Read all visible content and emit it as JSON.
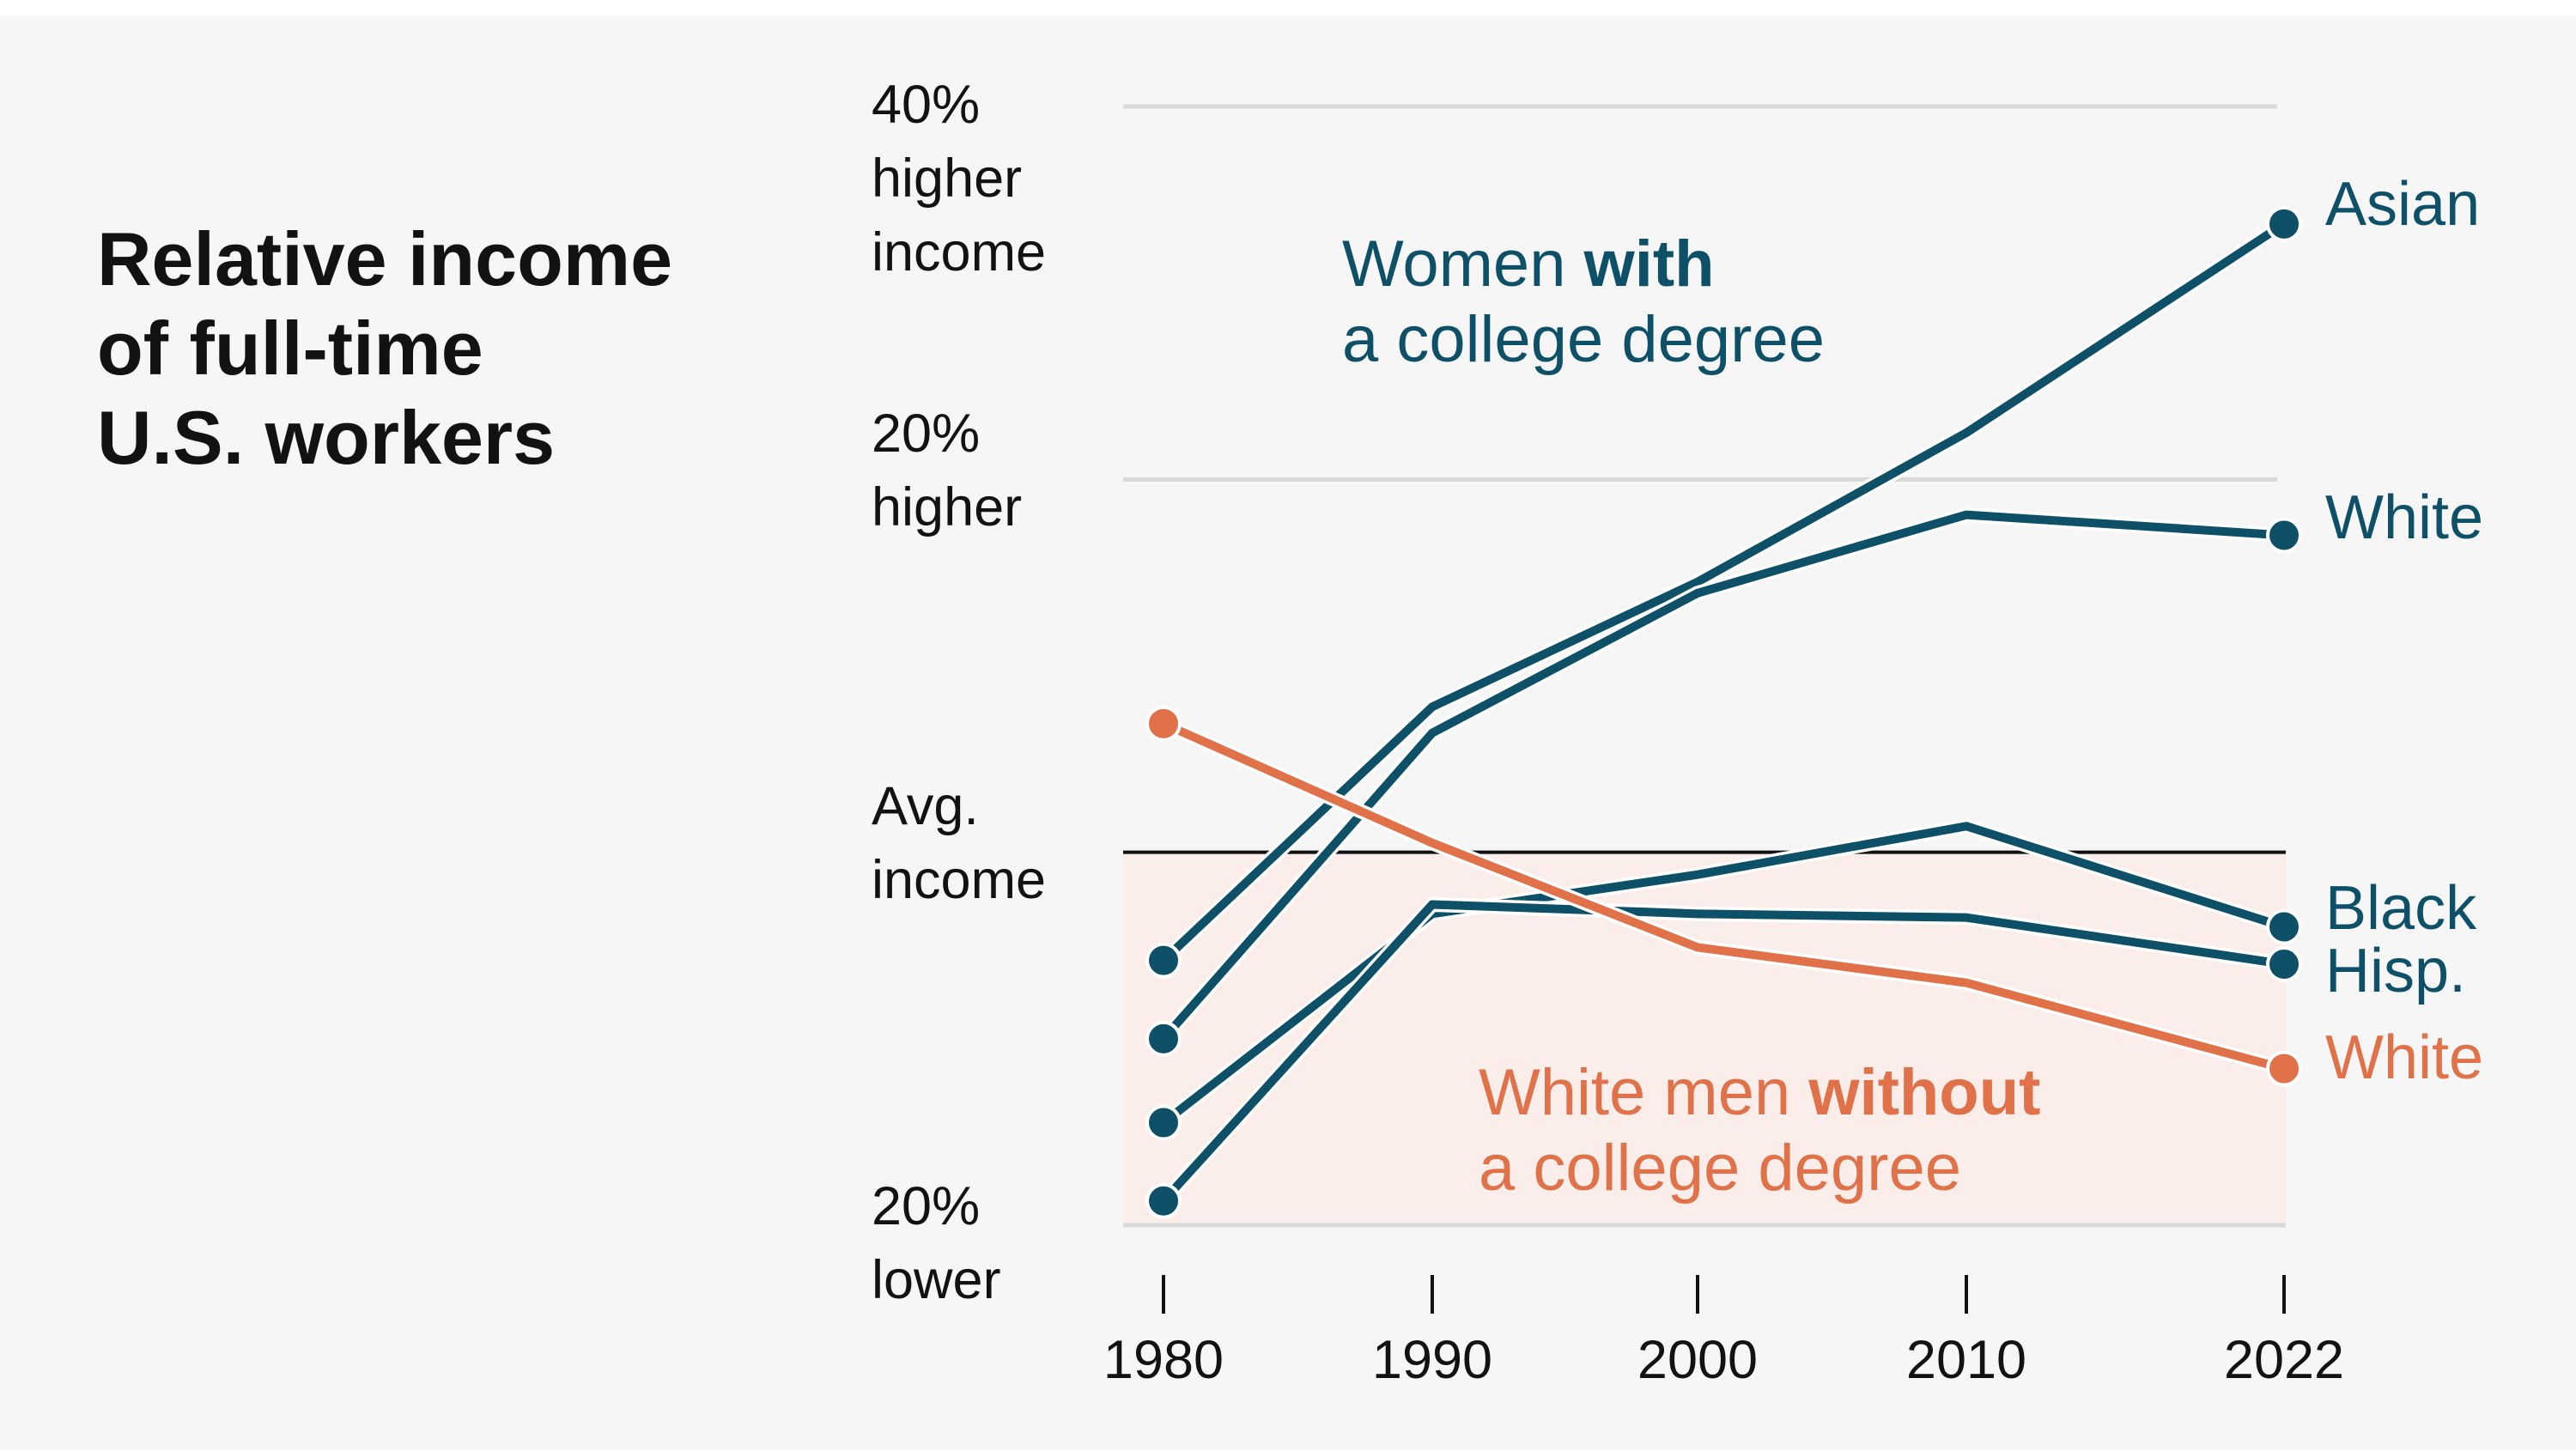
{
  "title": "Relative income of full-time U.S. workers",
  "title_lines": [
    "Relative income",
    "of full-time",
    "U.S. workers"
  ],
  "colors": {
    "background": "#f6f6f6",
    "women_college": "#0d5068",
    "men_no_college": "#e07148",
    "below_avg_band": "#fbeeea",
    "gridline": "#d9d9d9",
    "avg_line": "#121212"
  },
  "chart_data": {
    "type": "line",
    "x": [
      1980,
      1990,
      2000,
      2010,
      2022
    ],
    "xticks": [
      "1980",
      "1990",
      "2000",
      "2010",
      "2022"
    ],
    "ylim": [
      -20,
      40
    ],
    "ytick_labels": [
      {
        "value": 40,
        "lines": [
          "40%",
          "higher",
          "income"
        ]
      },
      {
        "value": 20,
        "lines": [
          "20%",
          "higher"
        ]
      },
      {
        "value": 0,
        "lines": [
          "Avg.",
          "income"
        ]
      },
      {
        "value": -20,
        "lines": [
          "20%",
          "lower"
        ]
      }
    ],
    "gridlines": [
      40,
      20,
      -20
    ],
    "reference_line": 0,
    "shaded_band": [
      -20,
      0
    ],
    "groups": [
      {
        "key": "women",
        "label_normal": "Women ",
        "label_bold": "with",
        "label_line2": "a college degree",
        "color_key": "women_college"
      },
      {
        "key": "men",
        "label_normal": "White men ",
        "label_bold": "without",
        "label_line2": "a college degree",
        "color_key": "men_no_college"
      }
    ],
    "series": [
      {
        "name": "Asian",
        "group": "women",
        "values": [
          -5.8,
          7.8,
          14.5,
          22.5,
          33.7
        ]
      },
      {
        "name": "White",
        "group": "women",
        "values": [
          -10.0,
          6.4,
          13.9,
          18.1,
          17.0
        ]
      },
      {
        "name": "Black",
        "group": "women",
        "values": [
          -14.5,
          -3.3,
          -1.2,
          1.4,
          -4.0
        ]
      },
      {
        "name": "Hisp.",
        "group": "women",
        "values": [
          -18.7,
          -2.8,
          -3.3,
          -3.5,
          -6.0
        ]
      },
      {
        "name": "White",
        "group": "men",
        "values": [
          6.9,
          0.5,
          -5.1,
          -7.0,
          -11.6
        ]
      }
    ]
  }
}
